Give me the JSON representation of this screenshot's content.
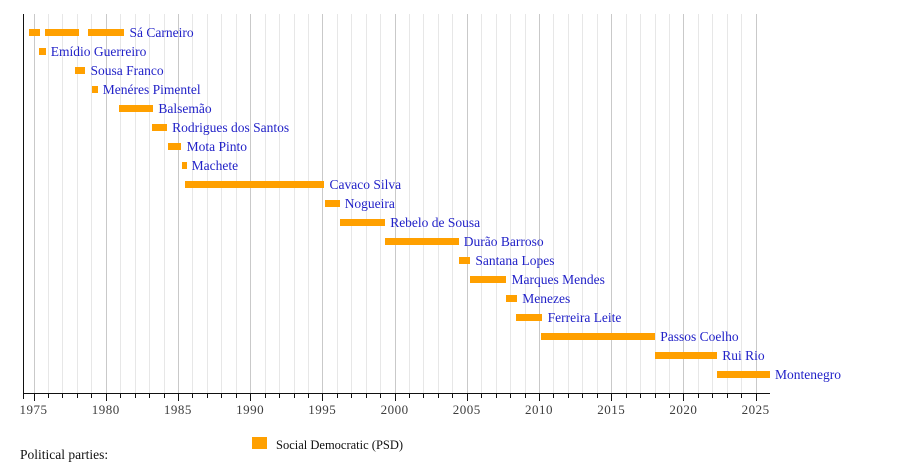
{
  "chart_data": {
    "type": "timeline-gantt",
    "title": "",
    "xlabel": "",
    "ylabel": "",
    "xlim": [
      1974.27,
      2026.0
    ],
    "grid": "vertical, one line per year, darker every 5 years",
    "x_ticks_major": [
      1975,
      1980,
      1985,
      1990,
      1995,
      2000,
      2005,
      2010,
      2015,
      2020,
      2025
    ],
    "x_minor_tick_interval": 1,
    "bar_color": "#FFA000",
    "leader_label_color": "#2222C8",
    "axis_color": "#111111",
    "tick_label_color": "#3d3d3d",
    "series": [
      {
        "name": "Sá Carneiro",
        "periods": [
          [
            1974.7,
            1975.45
          ],
          [
            1975.8,
            1978.15
          ],
          [
            1978.8,
            1981.3
          ]
        ]
      },
      {
        "name": "Emídio Guerreiro",
        "periods": [
          [
            1975.4,
            1975.85
          ]
        ]
      },
      {
        "name": "Sousa Franco",
        "periods": [
          [
            1977.9,
            1978.6
          ]
        ]
      },
      {
        "name": "Menéres Pimentel",
        "periods": [
          [
            1979.05,
            1979.45
          ]
        ]
      },
      {
        "name": "Balsemão",
        "periods": [
          [
            1980.9,
            1983.3
          ]
        ]
      },
      {
        "name": "Rodrigues dos Santos",
        "periods": [
          [
            1983.2,
            1984.25
          ]
        ]
      },
      {
        "name": "Mota Pinto",
        "periods": [
          [
            1984.3,
            1985.25
          ]
        ]
      },
      {
        "name": "Machete",
        "periods": [
          [
            1985.25,
            1985.6
          ]
        ]
      },
      {
        "name": "Cavaco Silva",
        "periods": [
          [
            1985.5,
            1995.15
          ]
        ]
      },
      {
        "name": "Nogueira",
        "periods": [
          [
            1995.15,
            1996.2
          ]
        ]
      },
      {
        "name": "Rebelo de Sousa",
        "periods": [
          [
            1996.25,
            1999.35
          ]
        ]
      },
      {
        "name": "Durão Barroso",
        "periods": [
          [
            1999.35,
            2004.45
          ]
        ]
      },
      {
        "name": "Santana Lopes",
        "periods": [
          [
            2004.45,
            2005.25
          ]
        ]
      },
      {
        "name": "Marques Mendes",
        "periods": [
          [
            2005.25,
            2007.75
          ]
        ]
      },
      {
        "name": "Menezes",
        "periods": [
          [
            2007.7,
            2008.5
          ]
        ]
      },
      {
        "name": "Ferreira Leite",
        "periods": [
          [
            2008.4,
            2010.25
          ]
        ]
      },
      {
        "name": "Passos Coelho",
        "periods": [
          [
            2010.15,
            2018.05
          ]
        ]
      },
      {
        "name": "Rui Rio",
        "periods": [
          [
            2018.05,
            2022.35
          ]
        ]
      },
      {
        "name": "Montenegro",
        "periods": [
          [
            2022.35,
            2026.0
          ]
        ]
      }
    ],
    "legend": {
      "heading": "Political parties:",
      "entries": [
        {
          "label": "Social Democratic (PSD)",
          "color": "#FFA000"
        }
      ]
    }
  }
}
